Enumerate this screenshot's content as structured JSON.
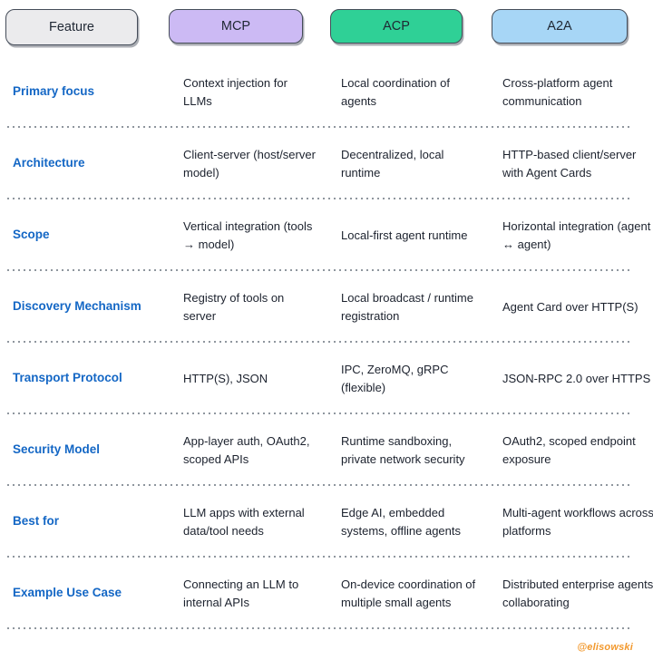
{
  "table": {
    "columns": [
      {
        "label": "Feature",
        "color": "#ebebed"
      },
      {
        "label": "MCP",
        "color": "#ccbaf4"
      },
      {
        "label": "ACP",
        "color": "#2fd096"
      },
      {
        "label": "A2A",
        "color": "#a7d6f6"
      }
    ],
    "rows": [
      {
        "feature": "Primary focus",
        "mcp": "Context injection for LLMs",
        "acp": "Local coordination of agents",
        "a2a": "Cross-platform agent communication"
      },
      {
        "feature": "Architecture",
        "mcp": "Client-server (host/server model)",
        "acp": "Decentralized, local runtime",
        "a2a": "HTTP-based client/server with Agent Cards"
      },
      {
        "feature": "Scope",
        "mcp": "Vertical integration (tools → model)",
        "acp": "Local-first agent runtime",
        "a2a": "Horizontal integration (agent ↔ agent)"
      },
      {
        "feature": "Discovery Mechanism",
        "mcp": "Registry of tools on server",
        "acp": "Local broadcast / runtime registration",
        "a2a": "Agent Card over HTTP(S)"
      },
      {
        "feature": "Transport Protocol",
        "mcp": "HTTP(S), JSON",
        "acp": "IPC, ZeroMQ, gRPC (flexible)",
        "a2a": "JSON-RPC 2.0 over HTTPS"
      },
      {
        "feature": "Security Model",
        "mcp": "App-layer auth, OAuth2, scoped APIs",
        "acp": "Runtime sandboxing, private network security",
        "a2a": "OAuth2, scoped endpoint exposure"
      },
      {
        "feature": "Best for",
        "mcp": "LLM apps with external data/tool needs",
        "acp": "Edge AI, embedded systems, offline agents",
        "a2a": "Multi-agent workflows across platforms"
      },
      {
        "feature": "Example Use Case",
        "mcp": "Connecting an LLM to internal APIs",
        "acp": "On-device coordination of multiple small agents",
        "a2a": "Distributed enterprise agents collaborating"
      }
    ]
  },
  "watermark": "@elisowski",
  "colors": {
    "feature_label": "#1467c5",
    "cell_text": "#1c222e",
    "pill_border": "#454d59",
    "dotted_separator": "#8f969e",
    "watermark": "#f2992e",
    "background": "#ffffff"
  }
}
